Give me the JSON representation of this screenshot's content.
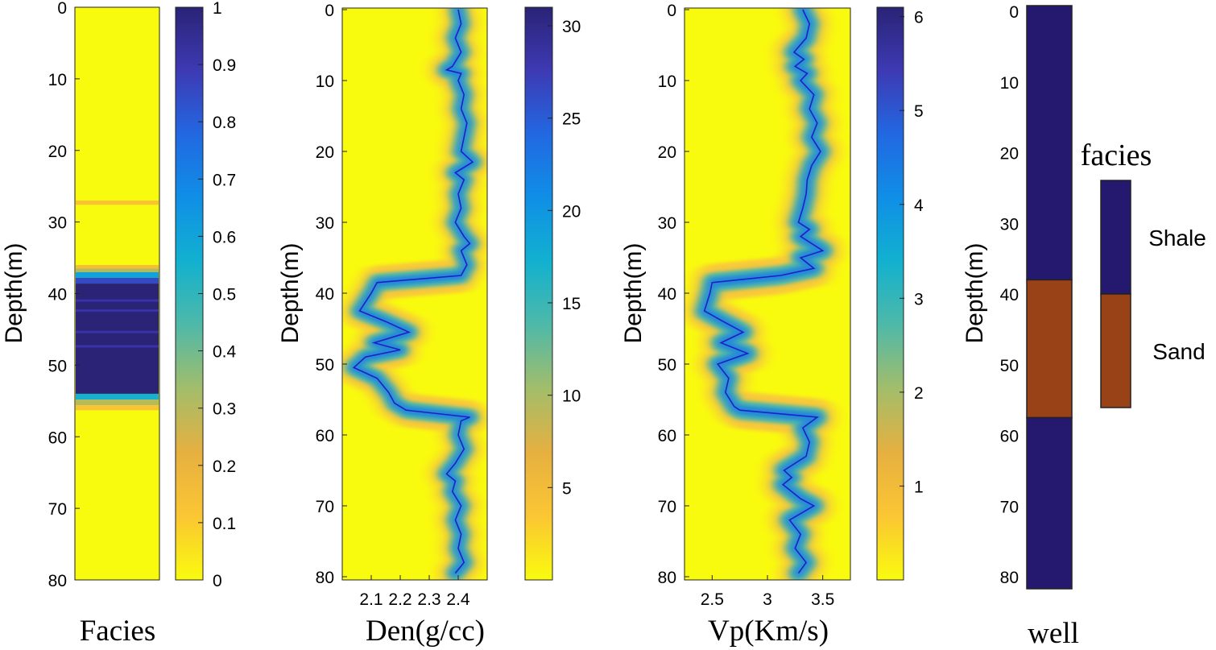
{
  "colors": {
    "background": "#ffff10",
    "shale": "#24196f",
    "sand": "#9a4217",
    "curve": "#1d1fc9",
    "colormap": [
      "#f9fb0e",
      "#fbc633",
      "#e6b040",
      "#a3bd6a",
      "#4fb9a8",
      "#12b1cf",
      "#0f8fe6",
      "#2268e2",
      "#3d3ab4",
      "#2a2376"
    ]
  },
  "chart_data": [
    {
      "type": "heatmap",
      "xlabel": "Facies",
      "ylabel": "Depth(m)",
      "ylim": [
        0,
        80
      ],
      "yticks": [
        "0",
        "10",
        "20",
        "30",
        "40",
        "50",
        "60",
        "70",
        "80"
      ],
      "colorbar": {
        "range": [
          0,
          1
        ],
        "ticks": [
          "0",
          "0.1",
          "0.2",
          "0.3",
          "0.4",
          "0.5",
          "0.6",
          "0.7",
          "0.8",
          "0.9",
          "1"
        ]
      },
      "bands": [
        {
          "from": 27,
          "to": 27.6,
          "value": 0.12
        },
        {
          "from": 36,
          "to": 36.5,
          "value": 0.15
        },
        {
          "from": 36.5,
          "to": 37,
          "value": 0.3
        },
        {
          "from": 37,
          "to": 37.8,
          "value": 0.6
        },
        {
          "from": 37.8,
          "to": 38.6,
          "value": 0.85
        },
        {
          "from": 38.6,
          "to": 54,
          "value": 1
        },
        {
          "from": 54,
          "to": 54.8,
          "value": 0.55
        },
        {
          "from": 54.8,
          "to": 55.6,
          "value": 0.3
        },
        {
          "from": 55.6,
          "to": 56.3,
          "value": 0.12
        }
      ]
    },
    {
      "type": "heatmap",
      "xlabel": "Den(g/cc)",
      "ylabel": "Depth(m)",
      "xlim": [
        2.0,
        2.5
      ],
      "xticks": [
        "2.1",
        "2.2",
        "2.3",
        "2.4"
      ],
      "ylim": [
        0,
        80
      ],
      "yticks": [
        "0",
        "10",
        "20",
        "30",
        "40",
        "50",
        "60",
        "70",
        "80"
      ],
      "colorbar": {
        "range": [
          0,
          31
        ],
        "ticks": [
          "5",
          "10",
          "15",
          "20",
          "25",
          "30"
        ]
      },
      "curve": {
        "depth": [
          0,
          2,
          4,
          6,
          8,
          8.5,
          9,
          10,
          12,
          14,
          16,
          18,
          20,
          21.5,
          23,
          24,
          26,
          28,
          30,
          32,
          33,
          34,
          36,
          37.5,
          38.5,
          40,
          42.5,
          44,
          45.5,
          47,
          48,
          49,
          50.5,
          52,
          54,
          55.5,
          56.5,
          57.5,
          58,
          60,
          62,
          64,
          65.5,
          66.5,
          68,
          70,
          72,
          74,
          76,
          78,
          79.5
        ],
        "den": [
          2.4,
          2.41,
          2.39,
          2.41,
          2.38,
          2.36,
          2.41,
          2.4,
          2.42,
          2.41,
          2.43,
          2.42,
          2.41,
          2.45,
          2.39,
          2.42,
          2.4,
          2.41,
          2.39,
          2.42,
          2.44,
          2.41,
          2.43,
          2.41,
          2.12,
          2.1,
          2.06,
          2.15,
          2.23,
          2.11,
          2.2,
          2.08,
          2.04,
          2.12,
          2.16,
          2.18,
          2.22,
          2.44,
          2.41,
          2.4,
          2.42,
          2.39,
          2.36,
          2.39,
          2.38,
          2.41,
          2.39,
          2.41,
          2.4,
          2.42,
          2.39
        ]
      }
    },
    {
      "type": "heatmap",
      "xlabel": "Vp(Km/s)",
      "ylabel": "Depth(m)",
      "xlim": [
        2.25,
        3.75
      ],
      "xticks": [
        "2.5",
        "3",
        "3.5"
      ],
      "ylim": [
        0,
        80
      ],
      "yticks": [
        "0",
        "10",
        "20",
        "30",
        "40",
        "50",
        "60",
        "70",
        "80"
      ],
      "colorbar": {
        "range": [
          0,
          6.1
        ],
        "ticks": [
          "1",
          "2",
          "3",
          "4",
          "5",
          "6"
        ]
      },
      "curve": {
        "depth": [
          0,
          2,
          4,
          6,
          7,
          8,
          9,
          10,
          12,
          14,
          16,
          18,
          20,
          22,
          24,
          26,
          28,
          30,
          31,
          32,
          34,
          35,
          36.5,
          37.5,
          38.5,
          40,
          42.5,
          44,
          45.5,
          47,
          48.5,
          50,
          52,
          54,
          56,
          56.5,
          57.5,
          59,
          61,
          63,
          65,
          66,
          67,
          69,
          70,
          72,
          74,
          76,
          78,
          79.5
        ],
        "vp": [
          3.32,
          3.38,
          3.35,
          3.24,
          3.33,
          3.25,
          3.36,
          3.3,
          3.42,
          3.38,
          3.45,
          3.4,
          3.48,
          3.4,
          3.36,
          3.35,
          3.32,
          3.28,
          3.38,
          3.3,
          3.5,
          3.3,
          3.42,
          3.12,
          2.5,
          2.48,
          2.43,
          2.6,
          2.78,
          2.58,
          2.82,
          2.55,
          2.65,
          2.62,
          2.7,
          2.75,
          3.45,
          3.32,
          3.38,
          3.35,
          3.15,
          3.22,
          3.14,
          3.3,
          3.42,
          3.2,
          3.3,
          3.25,
          3.35,
          3.28
        ]
      }
    },
    {
      "type": "table",
      "xlabel": "well",
      "ylabel": "Depth(m)",
      "ylim": [
        0,
        80
      ],
      "yticks": [
        "0",
        "10",
        "20",
        "30",
        "40",
        "50",
        "60",
        "70",
        "80"
      ],
      "intervals": [
        {
          "from": 0,
          "to": 38,
          "facies": "Shale"
        },
        {
          "from": 38,
          "to": 57.5,
          "facies": "Sand"
        },
        {
          "from": 57.5,
          "to": 81,
          "facies": "Shale"
        }
      ],
      "legend": {
        "title": "facies",
        "entries": [
          "Shale",
          "Sand"
        ]
      }
    }
  ]
}
